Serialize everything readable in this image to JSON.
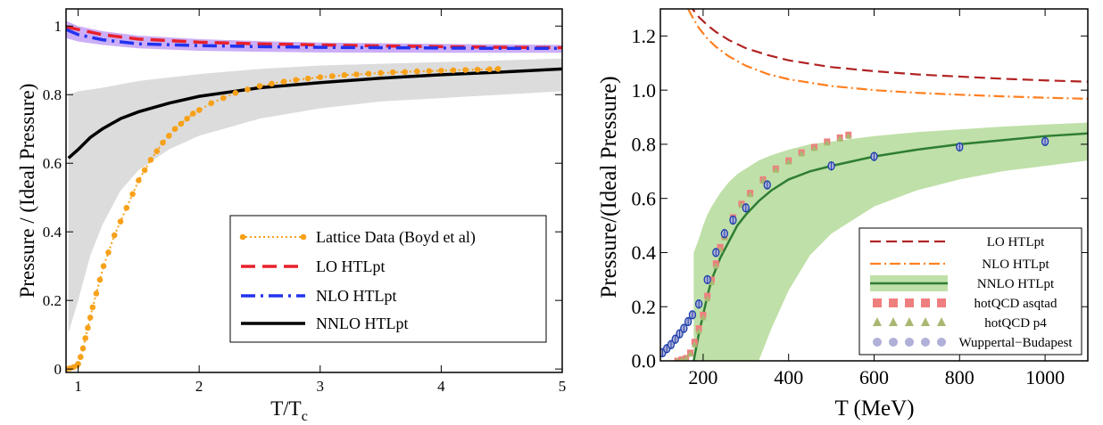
{
  "chart_data": [
    {
      "type": "line",
      "xlabel": "T/T",
      "xlabel_sub": "c",
      "ylabel": "Pressure / (Ideal Pressure)",
      "xlim": [
        0.9,
        5
      ],
      "ylim": [
        -0.01,
        1.05
      ],
      "xticks": [
        1,
        2,
        3,
        4,
        5
      ],
      "xtick_labels": [
        "1",
        "2",
        "3",
        "4",
        "5"
      ],
      "yticks": [
        0,
        0.2,
        0.4,
        0.6,
        0.8,
        1
      ],
      "ytick_labels": [
        "0",
        "0.2",
        "0.4",
        "0.6",
        "0.8",
        "1"
      ],
      "legend_position": "bottom-right",
      "colors": {
        "lattice": "#f7a11a",
        "lo": "#e8202a",
        "nlo": "#2233ee",
        "nnlo": "#000000",
        "band_grey": "#dcdcdc",
        "band_purple": "#b78cf5"
      },
      "series": [
        {
          "name": "Lattice Data (Boyd et al)",
          "style": "dotted-points",
          "x": [
            0.9,
            0.93,
            0.96,
            0.99,
            1.0,
            1.02,
            1.04,
            1.06,
            1.08,
            1.1,
            1.12,
            1.15,
            1.18,
            1.21,
            1.25,
            1.3,
            1.35,
            1.4,
            1.45,
            1.5,
            1.55,
            1.6,
            1.65,
            1.7,
            1.75,
            1.8,
            1.85,
            1.9,
            1.95,
            2.0,
            2.1,
            2.2,
            2.3,
            2.4,
            2.5,
            2.6,
            2.7,
            2.8,
            2.9,
            3.0,
            3.1,
            3.2,
            3.3,
            3.4,
            3.5,
            3.6,
            3.7,
            3.8,
            3.9,
            4.0,
            4.1,
            4.2,
            4.3,
            4.4,
            4.47
          ],
          "y": [
            0.0,
            0.002,
            0.005,
            0.01,
            0.015,
            0.035,
            0.06,
            0.09,
            0.12,
            0.15,
            0.18,
            0.22,
            0.26,
            0.3,
            0.34,
            0.39,
            0.43,
            0.47,
            0.51,
            0.55,
            0.58,
            0.61,
            0.635,
            0.66,
            0.68,
            0.7,
            0.715,
            0.73,
            0.745,
            0.755,
            0.775,
            0.79,
            0.805,
            0.815,
            0.825,
            0.832,
            0.838,
            0.843,
            0.847,
            0.851,
            0.854,
            0.857,
            0.859,
            0.861,
            0.863,
            0.865,
            0.866,
            0.868,
            0.869,
            0.87,
            0.871,
            0.872,
            0.873,
            0.874,
            0.875
          ]
        },
        {
          "name": "LO HTLpt",
          "style": "dashed",
          "x": [
            0.9,
            1.0,
            1.2,
            1.5,
            2.0,
            2.5,
            3.0,
            3.5,
            4.0,
            4.5,
            5.0
          ],
          "y": [
            0.998,
            0.99,
            0.975,
            0.962,
            0.953,
            0.948,
            0.945,
            0.942,
            0.94,
            0.938,
            0.937
          ]
        },
        {
          "name": "NLO HTLpt",
          "style": "dash-dot",
          "x": [
            0.9,
            1.0,
            1.2,
            1.5,
            2.0,
            2.5,
            3.0,
            3.5,
            4.0,
            4.5,
            5.0
          ],
          "y": [
            0.99,
            0.975,
            0.96,
            0.948,
            0.943,
            0.94,
            0.938,
            0.937,
            0.936,
            0.935,
            0.935
          ]
        },
        {
          "name": "NNLO HTLpt",
          "style": "solid",
          "x": [
            0.92,
            1.0,
            1.1,
            1.2,
            1.35,
            1.5,
            1.75,
            2.0,
            2.5,
            3.0,
            3.5,
            4.0,
            4.5,
            5.0
          ],
          "y": [
            0.615,
            0.64,
            0.675,
            0.7,
            0.73,
            0.75,
            0.775,
            0.795,
            0.82,
            0.835,
            0.848,
            0.858,
            0.866,
            0.875
          ],
          "band_lower": [
            0.105,
            0.2,
            0.33,
            0.42,
            0.52,
            0.58,
            0.64,
            0.68,
            0.73,
            0.76,
            0.78,
            0.79,
            0.8,
            0.81
          ],
          "band_upper": [
            0.8,
            0.81,
            0.815,
            0.82,
            0.83,
            0.84,
            0.85,
            0.86,
            0.875,
            0.885,
            0.89,
            0.895,
            0.9,
            0.905
          ]
        }
      ],
      "purple_band": {
        "x": [
          0.9,
          1.0,
          1.2,
          1.5,
          2.0,
          2.5,
          3.0,
          4.0,
          5.0
        ],
        "upper": [
          1.015,
          1.0,
          0.985,
          0.972,
          0.962,
          0.956,
          0.952,
          0.948,
          0.945
        ],
        "lower": [
          0.965,
          0.955,
          0.945,
          0.935,
          0.928,
          0.925,
          0.923,
          0.922,
          0.922
        ]
      }
    },
    {
      "type": "line",
      "xlabel": "T (MeV)",
      "ylabel": "Pressure/(Ideal Pressure)",
      "xlim": [
        100,
        1100
      ],
      "ylim": [
        0,
        1.3
      ],
      "xticks": [
        200,
        400,
        600,
        800,
        1000
      ],
      "xtick_labels": [
        "200",
        "400",
        "600",
        "800",
        "1000"
      ],
      "yticks": [
        0.0,
        0.2,
        0.4,
        0.6,
        0.8,
        1.0,
        1.2
      ],
      "ytick_labels": [
        "0.0",
        "0.2",
        "0.4",
        "0.6",
        "0.8",
        "1.0",
        "1.2"
      ],
      "legend_position": "bottom-right",
      "colors": {
        "lo": "#b22222",
        "nlo": "#ff7f1f",
        "nnlo": "#2e7d32",
        "band": "#bfe0a8",
        "asqtad": "#ef7f7f",
        "p4": "#a8b870",
        "wb": "#b0b0d8"
      },
      "series": [
        {
          "name": "LO HTLpt",
          "style": "dashed",
          "x": [
            165,
            175,
            190,
            210,
            230,
            260,
            300,
            350,
            400,
            500,
            600,
            700,
            800,
            900,
            1000,
            1100
          ],
          "y": [
            1.32,
            1.3,
            1.27,
            1.24,
            1.215,
            1.185,
            1.155,
            1.13,
            1.11,
            1.085,
            1.07,
            1.058,
            1.05,
            1.042,
            1.036,
            1.031
          ]
        },
        {
          "name": "NLO HTLpt",
          "style": "dash-dot",
          "x": [
            165,
            175,
            190,
            210,
            230,
            260,
            300,
            350,
            400,
            500,
            600,
            700,
            800,
            900,
            1000,
            1100
          ],
          "y": [
            1.3,
            1.27,
            1.23,
            1.19,
            1.16,
            1.125,
            1.09,
            1.06,
            1.04,
            1.015,
            1.0,
            0.99,
            0.983,
            0.977,
            0.972,
            0.968
          ]
        },
        {
          "name": "NNLO HTLpt",
          "style": "solid",
          "x": [
            178,
            190,
            200,
            210,
            220,
            240,
            260,
            280,
            300,
            330,
            360,
            400,
            450,
            500,
            600,
            700,
            800,
            900,
            1000,
            1100
          ],
          "y": [
            0.0,
            0.1,
            0.17,
            0.24,
            0.3,
            0.38,
            0.44,
            0.5,
            0.54,
            0.59,
            0.63,
            0.67,
            0.7,
            0.72,
            0.755,
            0.78,
            0.8,
            0.815,
            0.83,
            0.84
          ],
          "band_lower": [
            null,
            null,
            null,
            null,
            null,
            null,
            null,
            null,
            null,
            0.0,
            0.12,
            0.26,
            0.39,
            0.47,
            0.57,
            0.63,
            0.67,
            0.7,
            0.72,
            0.74
          ],
          "band_upper": [
            0.4,
            0.45,
            0.5,
            0.54,
            0.57,
            0.62,
            0.66,
            0.69,
            0.71,
            0.74,
            0.76,
            0.78,
            0.8,
            0.81,
            0.83,
            0.845,
            0.855,
            0.865,
            0.873,
            0.88
          ]
        },
        {
          "name": "hotQCD asqtad",
          "style": "squares",
          "x": [
            140,
            150,
            160,
            170,
            180,
            190,
            200,
            210,
            220,
            230,
            240,
            250,
            270,
            290,
            310,
            340,
            370,
            400,
            430,
            460,
            490,
            520,
            540
          ],
          "y": [
            0.0,
            0.005,
            0.01,
            0.03,
            0.07,
            0.12,
            0.17,
            0.24,
            0.3,
            0.36,
            0.42,
            0.46,
            0.53,
            0.58,
            0.62,
            0.67,
            0.71,
            0.74,
            0.77,
            0.79,
            0.81,
            0.825,
            0.835
          ]
        },
        {
          "name": "hotQCD p4",
          "style": "triangles",
          "x": [
            140,
            150,
            160,
            170,
            180,
            190,
            200,
            210,
            220,
            230,
            240,
            250,
            270,
            290,
            310,
            340,
            370,
            400,
            430,
            460,
            490,
            520,
            540
          ],
          "y": [
            0.0,
            0.003,
            0.008,
            0.025,
            0.06,
            0.11,
            0.16,
            0.23,
            0.29,
            0.35,
            0.41,
            0.455,
            0.525,
            0.575,
            0.615,
            0.665,
            0.705,
            0.735,
            0.765,
            0.785,
            0.805,
            0.82,
            0.83
          ]
        },
        {
          "name": "Wuppertal−Budapest",
          "style": "circles",
          "x": [
            105,
            115,
            125,
            135,
            145,
            155,
            165,
            175,
            190,
            210,
            230,
            250,
            270,
            300,
            350,
            500,
            600,
            800,
            1000
          ],
          "y": [
            0.03,
            0.045,
            0.06,
            0.08,
            0.1,
            0.12,
            0.145,
            0.17,
            0.21,
            0.3,
            0.4,
            0.47,
            0.52,
            0.565,
            0.65,
            0.72,
            0.755,
            0.79,
            0.81
          ]
        }
      ]
    }
  ]
}
